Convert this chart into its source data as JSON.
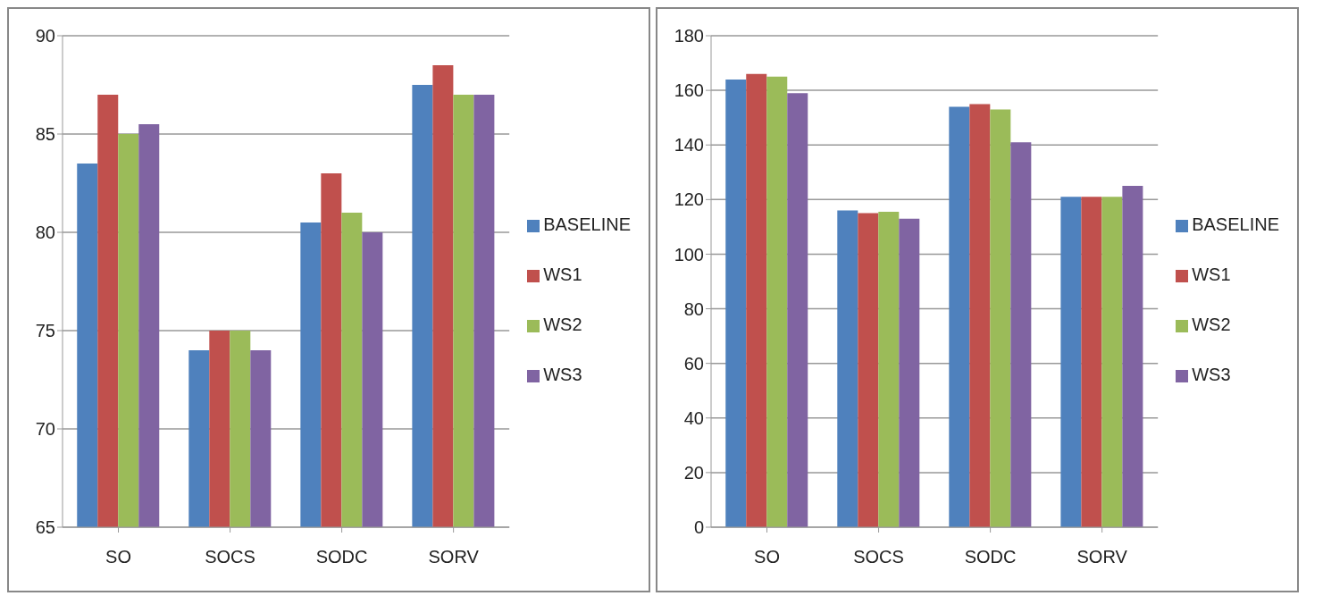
{
  "chart_data": [
    {
      "type": "bar",
      "categories": [
        "SO",
        "SOCS",
        "SODC",
        "SORV"
      ],
      "ylim": [
        65,
        90
      ],
      "yticks": [
        65,
        70,
        75,
        80,
        85,
        90
      ],
      "grid": "y",
      "legend": "right",
      "series": [
        {
          "name": "BASELINE",
          "color": "#4f81bd",
          "values": [
            83.5,
            74,
            80.5,
            87.5
          ]
        },
        {
          "name": "WS1",
          "color": "#c0504d",
          "values": [
            87,
            75,
            83,
            88.5
          ]
        },
        {
          "name": "WS2",
          "color": "#9bbb59",
          "values": [
            85,
            75,
            81,
            87
          ]
        },
        {
          "name": "WS3",
          "color": "#8064a2",
          "values": [
            85.5,
            74,
            80,
            87
          ]
        }
      ]
    },
    {
      "type": "bar",
      "categories": [
        "SO",
        "SOCS",
        "SODC",
        "SORV"
      ],
      "ylim": [
        0,
        180
      ],
      "yticks": [
        0,
        20,
        40,
        60,
        80,
        100,
        120,
        140,
        160,
        180
      ],
      "grid": "y",
      "legend": "right",
      "series": [
        {
          "name": "BASELINE",
          "color": "#4f81bd",
          "values": [
            164,
            116,
            154,
            121
          ]
        },
        {
          "name": "WS1",
          "color": "#c0504d",
          "values": [
            166,
            115,
            155,
            121
          ]
        },
        {
          "name": "WS2",
          "color": "#9bbb59",
          "values": [
            165,
            115.5,
            153,
            121
          ]
        },
        {
          "name": "WS3",
          "color": "#8064a2",
          "values": [
            159,
            113,
            141,
            125
          ]
        }
      ]
    }
  ]
}
